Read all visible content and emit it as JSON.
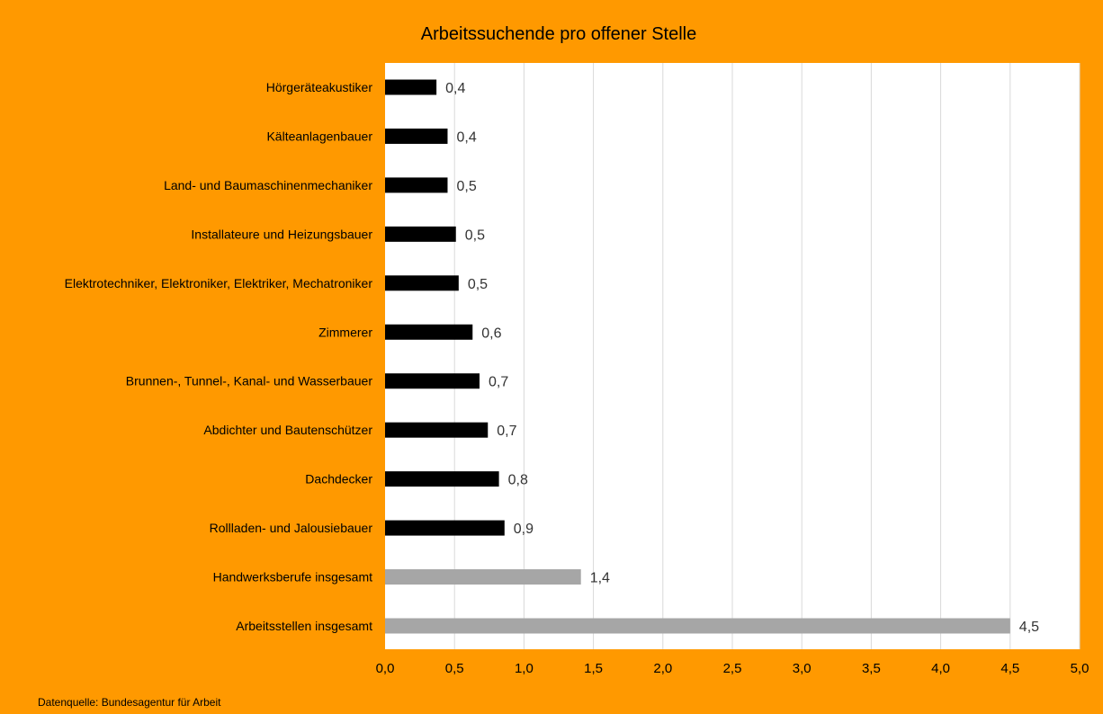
{
  "chart_data": {
    "type": "bar",
    "orientation": "horizontal",
    "title": "Arbeitssuchende pro offener Stelle",
    "categories": [
      "Hörgeräteakustiker",
      "Kälteanlagenbauer",
      "Land- und Baumaschinenmechaniker",
      "Installateure und Heizungsbauer",
      "Elektrotechniker, Elektroniker, Elektriker, Mechatroniker",
      "Zimmerer",
      "Brunnen-, Tunnel-, Kanal- und Wasserbauer",
      "Abdichter und Bautenschützer",
      "Dachdecker",
      "Rollladen- und Jalousiebauer",
      "Handwerksberufe insgesamt",
      "Arbeitsstellen insgesamt"
    ],
    "values": [
      0.37,
      0.45,
      0.45,
      0.51,
      0.53,
      0.63,
      0.68,
      0.74,
      0.82,
      0.86,
      1.41,
      4.5
    ],
    "value_labels": [
      "0,4",
      "0,4",
      "0,5",
      "0,5",
      "0,5",
      "0,6",
      "0,7",
      "0,7",
      "0,8",
      "0,9",
      "1,4",
      "4,5"
    ],
    "bar_colors": [
      "#000000",
      "#000000",
      "#000000",
      "#000000",
      "#000000",
      "#000000",
      "#000000",
      "#000000",
      "#000000",
      "#000000",
      "#A6A6A6",
      "#A6A6A6"
    ],
    "xlim": [
      0,
      5
    ],
    "xticks": [
      "0,0",
      "0,5",
      "1,0",
      "1,5",
      "2,0",
      "2,5",
      "3,0",
      "3,5",
      "4,0",
      "4,5",
      "5,0"
    ],
    "grid": true,
    "xlabel": "",
    "ylabel": ""
  },
  "source_note": "Datenquelle: Bundesagentur für Arbeit",
  "colors": {
    "background": "#FF9900",
    "plot_area": "#FFFFFF",
    "gridline": "#D9D9D9"
  }
}
